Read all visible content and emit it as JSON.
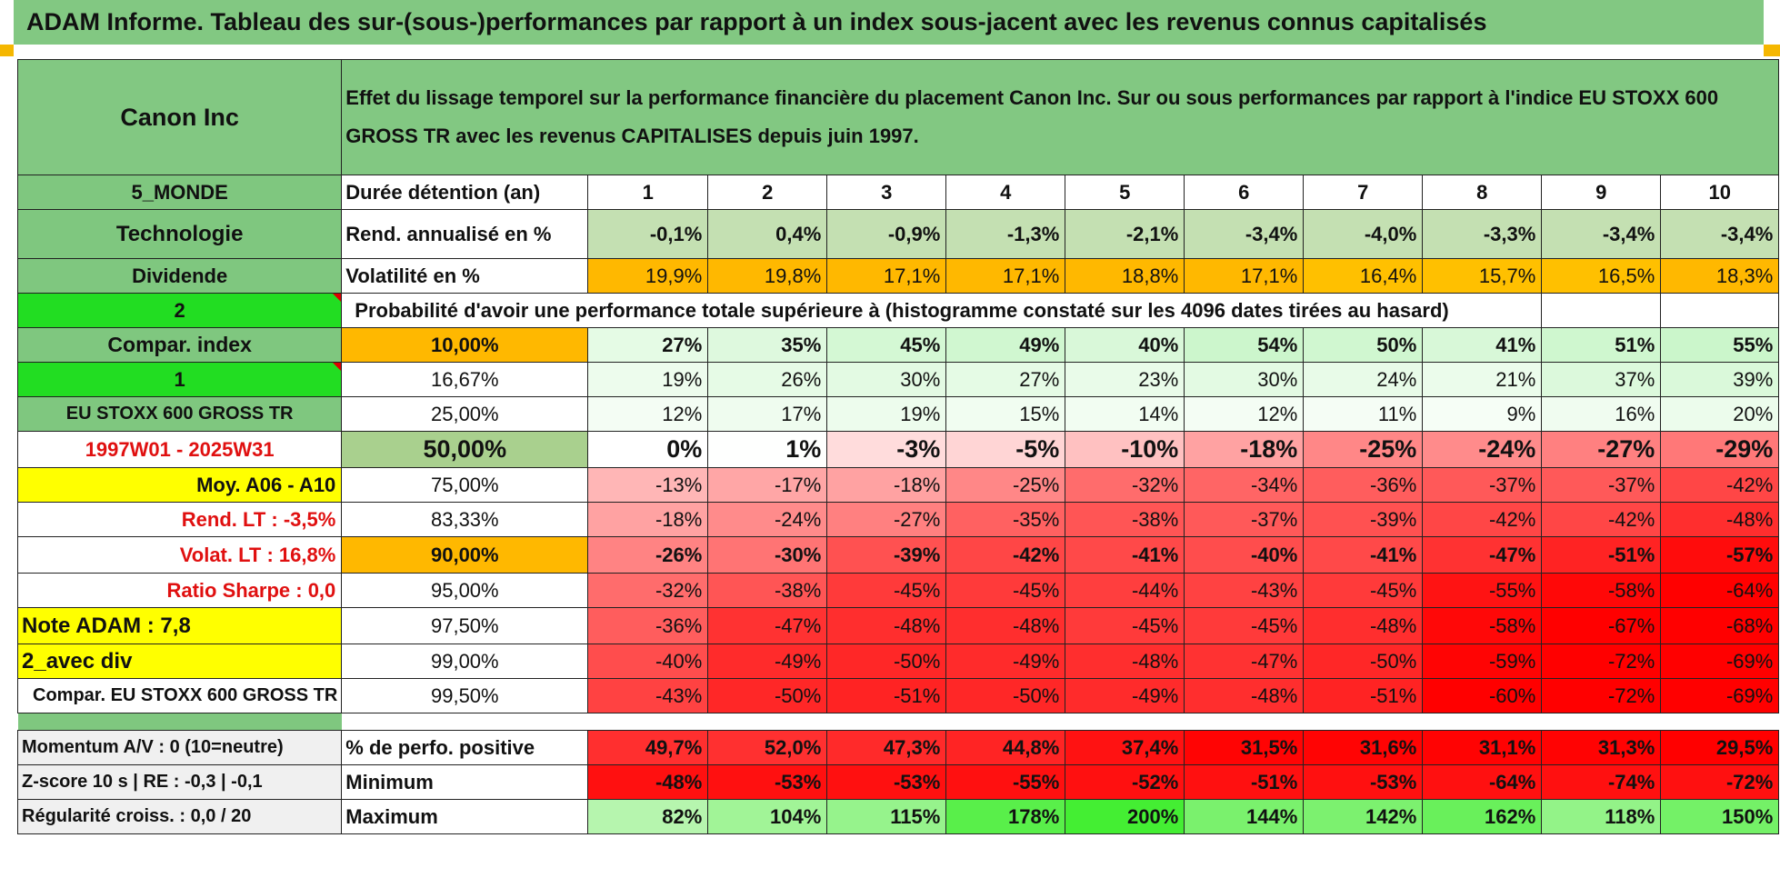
{
  "title": "ADAM Informe. Tableau des sur-(sous-)performances par rapport à un index sous-jacent avec les revenus connus capitalisés",
  "colors": {
    "header_green": "#82c882",
    "bright_green": "#22dd22",
    "orange": "#ffb800",
    "yellow": "#ffff00",
    "red_text": "#e01010"
  },
  "left": {
    "company": "Canon Inc",
    "region": "5_MONDE",
    "sector": "Technologie",
    "dividend_label": "Dividende",
    "selector_2": "2",
    "compar_index": "Compar. index",
    "selector_1": "1",
    "index_name": "EU STOXX 600 GROSS TR",
    "period": "1997W01 - 2025W31",
    "moy": "Moy. A06 - A10",
    "rend_lt": "Rend. LT :    -3,5%",
    "volat_lt": "Volat. LT :    16,8%",
    "sharpe": "Ratio Sharpe :     0,0",
    "note": "Note ADAM : 7,8",
    "avec_div": "2_avec div",
    "compar_full": "Compar. EU STOXX 600 GROSS TR",
    "momentum": "Momentum A/V : 0 (10=neutre)",
    "zscore": "Z-score 10 s | RE : -0,3 | -0,1",
    "regularite": "Régularité croiss. : 0,0 / 20"
  },
  "description": "Effet du lissage temporel sur la performance financière du placement Canon Inc. Sur ou sous performances par rapport à l'indice EU STOXX 600 GROSS TR avec les revenus CAPITALISES depuis juin 1997.",
  "labels": {
    "duree": "Durée détention (an)",
    "rend": "Rend. annualisé en %",
    "vol": "Volatilité en %",
    "prob": "Probabilité d'avoir une performance totale supérieure à (histogramme constaté sur les 4096 dates tirées au hasard)",
    "pct_pos": "% de perfo. positive",
    "min": "Minimum",
    "max": "Maximum"
  },
  "years": [
    "1",
    "2",
    "3",
    "4",
    "5",
    "6",
    "7",
    "8",
    "9",
    "10"
  ],
  "rend": [
    "-0,1%",
    "0,4%",
    "-0,9%",
    "-1,3%",
    "-2,1%",
    "-3,4%",
    "-4,0%",
    "-3,3%",
    "-3,4%",
    "-3,4%"
  ],
  "vol": [
    "19,9%",
    "19,8%",
    "17,1%",
    "17,1%",
    "18,8%",
    "17,1%",
    "16,4%",
    "15,7%",
    "16,5%",
    "18,3%"
  ],
  "prob_rows": [
    {
      "pct": "10,00%",
      "values": [
        "27%",
        "35%",
        "45%",
        "49%",
        "40%",
        "54%",
        "50%",
        "41%",
        "51%",
        "55%"
      ]
    },
    {
      "pct": "16,67%",
      "values": [
        "19%",
        "26%",
        "30%",
        "27%",
        "23%",
        "30%",
        "24%",
        "21%",
        "37%",
        "39%"
      ]
    },
    {
      "pct": "25,00%",
      "values": [
        "12%",
        "17%",
        "19%",
        "15%",
        "14%",
        "12%",
        "11%",
        "9%",
        "16%",
        "20%"
      ]
    },
    {
      "pct": "50,00%",
      "values": [
        "0%",
        "1%",
        "-3%",
        "-5%",
        "-10%",
        "-18%",
        "-25%",
        "-24%",
        "-27%",
        "-29%"
      ]
    },
    {
      "pct": "75,00%",
      "values": [
        "-13%",
        "-17%",
        "-18%",
        "-25%",
        "-32%",
        "-34%",
        "-36%",
        "-37%",
        "-37%",
        "-42%"
      ]
    },
    {
      "pct": "83,33%",
      "values": [
        "-18%",
        "-24%",
        "-27%",
        "-35%",
        "-38%",
        "-37%",
        "-39%",
        "-42%",
        "-42%",
        "-48%"
      ]
    },
    {
      "pct": "90,00%",
      "values": [
        "-26%",
        "-30%",
        "-39%",
        "-42%",
        "-41%",
        "-40%",
        "-41%",
        "-47%",
        "-51%",
        "-57%"
      ]
    },
    {
      "pct": "95,00%",
      "values": [
        "-32%",
        "-38%",
        "-45%",
        "-45%",
        "-44%",
        "-43%",
        "-45%",
        "-55%",
        "-58%",
        "-64%"
      ]
    },
    {
      "pct": "97,50%",
      "values": [
        "-36%",
        "-47%",
        "-48%",
        "-48%",
        "-45%",
        "-45%",
        "-48%",
        "-58%",
        "-67%",
        "-68%"
      ]
    },
    {
      "pct": "99,00%",
      "values": [
        "-40%",
        "-49%",
        "-50%",
        "-49%",
        "-48%",
        "-47%",
        "-50%",
        "-59%",
        "-72%",
        "-69%"
      ]
    },
    {
      "pct": "99,50%",
      "values": [
        "-43%",
        "-50%",
        "-51%",
        "-50%",
        "-49%",
        "-48%",
        "-51%",
        "-60%",
        "-72%",
        "-69%"
      ]
    }
  ],
  "pct_pos": [
    "49,7%",
    "52,0%",
    "47,3%",
    "44,8%",
    "37,4%",
    "31,5%",
    "31,6%",
    "31,1%",
    "31,3%",
    "29,5%"
  ],
  "min": [
    "-48%",
    "-53%",
    "-53%",
    "-55%",
    "-52%",
    "-51%",
    "-53%",
    "-64%",
    "-74%",
    "-72%"
  ],
  "max": [
    "82%",
    "104%",
    "115%",
    "178%",
    "200%",
    "144%",
    "142%",
    "162%",
    "118%",
    "150%"
  ]
}
